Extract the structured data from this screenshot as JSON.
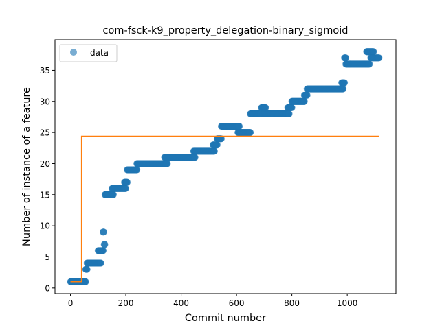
{
  "chart_data": {
    "type": "scatter",
    "title": "com-fsck-k9_property_delegation-binary_sigmoid",
    "xlabel": "Commit number",
    "ylabel": "Number of instance of a feature",
    "xlim": [
      -56,
      1176
    ],
    "ylim": [
      -0.9,
      39.9
    ],
    "xticks": [
      0,
      200,
      400,
      600,
      800,
      1000
    ],
    "yticks": [
      0,
      5,
      10,
      15,
      20,
      25,
      30,
      35
    ],
    "grid": false,
    "legend": {
      "position": "top-left",
      "entries": [
        "data"
      ]
    },
    "colors": {
      "data": "#1f77b4",
      "fit": "#ff7f0e"
    },
    "series": [
      {
        "name": "data",
        "kind": "scatter",
        "segments": [
          [
            0,
            55,
            1
          ],
          [
            55,
            60,
            3
          ],
          [
            60,
            110,
            4
          ],
          [
            100,
            118,
            6
          ],
          [
            118,
            120,
            9
          ],
          [
            122,
            124,
            7
          ],
          [
            125,
            155,
            15
          ],
          [
            150,
            200,
            16
          ],
          [
            195,
            205,
            17
          ],
          [
            205,
            240,
            19
          ],
          [
            240,
            350,
            20
          ],
          [
            340,
            450,
            21
          ],
          [
            445,
            520,
            22
          ],
          [
            515,
            530,
            23
          ],
          [
            530,
            545,
            24
          ],
          [
            545,
            610,
            26
          ],
          [
            605,
            650,
            25
          ],
          [
            650,
            690,
            28
          ],
          [
            690,
            705,
            29
          ],
          [
            695,
            790,
            28
          ],
          [
            785,
            800,
            29
          ],
          [
            800,
            845,
            30
          ],
          [
            845,
            855,
            31
          ],
          [
            855,
            985,
            32
          ],
          [
            980,
            990,
            33
          ],
          [
            990,
            995,
            37
          ],
          [
            995,
            1080,
            36
          ],
          [
            1070,
            1095,
            38
          ],
          [
            1085,
            1115,
            37
          ]
        ]
      },
      {
        "kind": "line",
        "points": [
          [
            0,
            1
          ],
          [
            40,
            1
          ],
          [
            40,
            24.4
          ],
          [
            1116,
            24.4
          ]
        ]
      }
    ]
  }
}
